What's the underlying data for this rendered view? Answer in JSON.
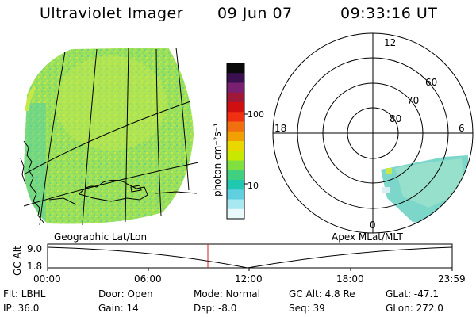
{
  "header": {
    "title": "Ultraviolet Imager",
    "date": "09 Jun 07",
    "time": "09:33:16 UT"
  },
  "colorbar": {
    "unit_label": "photon cm⁻²s⁻¹",
    "ticks": [
      "100",
      "10"
    ],
    "colors": [
      "#0a0a0a",
      "#3a1050",
      "#7a2070",
      "#a01838",
      "#d01010",
      "#f03010",
      "#f07010",
      "#f0a000",
      "#e8d800",
      "#c8e800",
      "#80e040",
      "#40d080",
      "#20c8b0",
      "#60d0e0",
      "#a8e8f0",
      "#e8f8fb"
    ]
  },
  "left_panel": {
    "caption": "Geographic Lat/Lon"
  },
  "right_panel": {
    "caption": "Apex MLat/MLT",
    "mlt_labels": {
      "top": "12",
      "left": "18",
      "right": "6",
      "bottom": "0"
    },
    "lat_labels": [
      "60",
      "70",
      "80"
    ]
  },
  "timeline": {
    "axis_title": "GC Alt",
    "y_ticks": [
      "9.0",
      "1.8"
    ],
    "x_ticks": [
      "00:00",
      "06:00",
      "12:00",
      "18:00",
      "23:59"
    ],
    "current_marker_color": "#cc2020"
  },
  "info": {
    "flt": "Flt: LBHL",
    "ip": "IP: 36.0",
    "door": "Door: Open",
    "gain": "Gain: 14",
    "mode": "Mode: Normal",
    "dsp": "Dsp:    -8.0",
    "gcalt": "GC Alt: 4.8 Re",
    "seq": "Seq: 39",
    "glat": "GLat: -47.1",
    "glon": "GLon: 272.0"
  }
}
